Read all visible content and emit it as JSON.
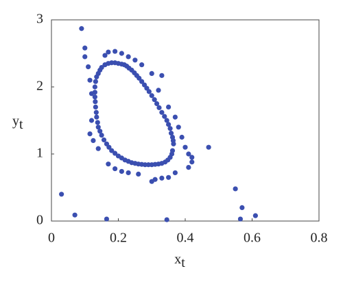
{
  "chart_data": {
    "type": "scatter",
    "xlabel": {
      "text": "x",
      "subscript": "t"
    },
    "ylabel": {
      "text": "y",
      "subscript": "t"
    },
    "xlim": [
      0,
      0.8
    ],
    "ylim": [
      0,
      3
    ],
    "xticks": [
      0,
      0.2,
      0.4,
      0.6,
      0.8
    ],
    "yticks": [
      0,
      1,
      2,
      3
    ],
    "color": "#3b4fb0",
    "x": [
      0.2,
      0.19,
      0.18,
      0.17,
      0.16,
      0.15,
      0.145,
      0.14,
      0.135,
      0.132,
      0.13,
      0.13,
      0.13,
      0.131,
      0.132,
      0.134,
      0.135,
      0.138,
      0.14,
      0.145,
      0.15,
      0.157,
      0.165,
      0.172,
      0.18,
      0.19,
      0.2,
      0.21,
      0.22,
      0.23,
      0.24,
      0.25,
      0.26,
      0.27,
      0.28,
      0.29,
      0.3,
      0.31,
      0.32,
      0.33,
      0.34,
      0.348,
      0.355,
      0.36,
      0.362,
      0.365,
      0.364,
      0.362,
      0.358,
      0.355,
      0.35,
      0.345,
      0.338,
      0.33,
      0.322,
      0.315,
      0.308,
      0.3,
      0.292,
      0.285,
      0.278,
      0.27,
      0.262,
      0.255,
      0.248,
      0.24,
      0.232,
      0.225,
      0.218,
      0.21,
      0.09,
      0.1,
      0.1,
      0.11,
      0.115,
      0.12,
      0.12,
      0.115,
      0.125,
      0.14,
      0.16,
      0.17,
      0.19,
      0.21,
      0.23,
      0.25,
      0.27,
      0.3,
      0.33,
      0.32,
      0.35,
      0.37,
      0.38,
      0.39,
      0.4,
      0.41,
      0.42,
      0.42,
      0.41,
      0.37,
      0.35,
      0.33,
      0.31,
      0.3,
      0.26,
      0.23,
      0.21,
      0.19,
      0.17,
      0.47,
      0.03,
      0.07,
      0.165,
      0.345,
      0.55,
      0.57,
      0.565,
      0.61
    ],
    "y": [
      2.35,
      2.36,
      2.36,
      2.35,
      2.33,
      2.29,
      2.25,
      2.2,
      2.15,
      2.08,
      2.0,
      1.92,
      1.85,
      1.78,
      1.7,
      1.62,
      1.55,
      1.47,
      1.4,
      1.34,
      1.28,
      1.21,
      1.15,
      1.1,
      1.05,
      1.01,
      0.97,
      0.94,
      0.91,
      0.89,
      0.87,
      0.86,
      0.85,
      0.845,
      0.84,
      0.84,
      0.84,
      0.845,
      0.85,
      0.86,
      0.88,
      0.91,
      0.95,
      1.0,
      1.05,
      1.15,
      1.2,
      1.25,
      1.31,
      1.38,
      1.44,
      1.5,
      1.56,
      1.62,
      1.69,
      1.75,
      1.81,
      1.87,
      1.93,
      1.98,
      2.03,
      2.08,
      2.13,
      2.17,
      2.21,
      2.25,
      2.28,
      2.31,
      2.33,
      2.34,
      2.87,
      2.58,
      2.45,
      2.3,
      2.1,
      1.9,
      1.5,
      1.3,
      1.2,
      1.08,
      2.47,
      2.52,
      2.53,
      2.5,
      2.45,
      2.4,
      2.33,
      2.2,
      2.17,
      1.95,
      1.7,
      1.55,
      1.4,
      1.25,
      1.1,
      1.0,
      0.95,
      0.88,
      0.8,
      0.72,
      0.65,
      0.64,
      0.62,
      0.59,
      0.7,
      0.72,
      0.74,
      0.78,
      0.85,
      1.1,
      0.4,
      0.09,
      0.03,
      0.02,
      0.48,
      0.2,
      0.03,
      0.08
    ]
  }
}
